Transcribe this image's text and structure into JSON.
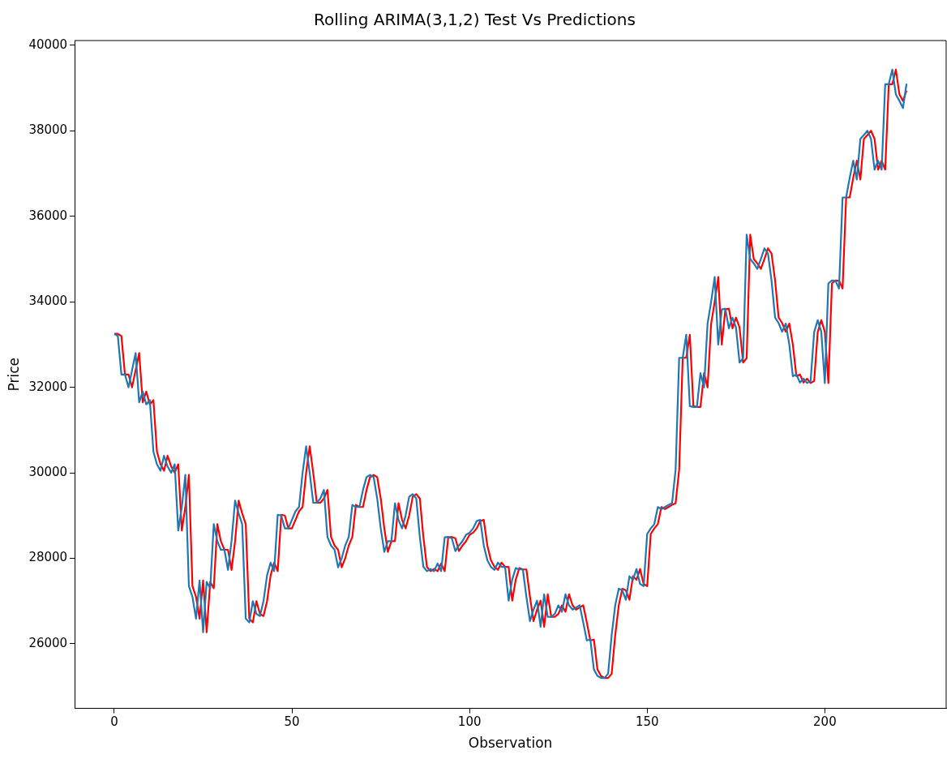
{
  "chart_data": {
    "type": "line",
    "title": "Rolling ARIMA(3,1,2) Test Vs Predictions",
    "xlabel": "Observation",
    "ylabel": "Price",
    "x": [
      0,
      1,
      2,
      3,
      4,
      5,
      6,
      7,
      8,
      9,
      10,
      11,
      12,
      13,
      14,
      15,
      16,
      17,
      18,
      19,
      20,
      21,
      22,
      23,
      24,
      25,
      26,
      27,
      28,
      29,
      30,
      31,
      32,
      33,
      34,
      35,
      36,
      37,
      38,
      39,
      40,
      41,
      42,
      43,
      44,
      45,
      46,
      47,
      48,
      49,
      50,
      51,
      52,
      53,
      54,
      55,
      56,
      57,
      58,
      59,
      60,
      61,
      62,
      63,
      64,
      65,
      66,
      67,
      68,
      69,
      70,
      71,
      72,
      73,
      74,
      75,
      76,
      77,
      78,
      79,
      80,
      81,
      82,
      83,
      84,
      85,
      86,
      87,
      88,
      89,
      90,
      91,
      92,
      93,
      94,
      95,
      96,
      97,
      98,
      99,
      100,
      101,
      102,
      103,
      104,
      105,
      106,
      107,
      108,
      109,
      110,
      111,
      112,
      113,
      114,
      115,
      116,
      117,
      118,
      119,
      120,
      121,
      122,
      123,
      124,
      125,
      126,
      127,
      128,
      129,
      130,
      131,
      132,
      133,
      134,
      135,
      136,
      137,
      138,
      139,
      140,
      141,
      142,
      143,
      144,
      145,
      146,
      147,
      148,
      149,
      150,
      151,
      152,
      153,
      154,
      155,
      156,
      157,
      158,
      159,
      160,
      161,
      162,
      163,
      164,
      165,
      166,
      167,
      168,
      169,
      170,
      171,
      172,
      173,
      174,
      175,
      176,
      177,
      178,
      179,
      180,
      181,
      182,
      183,
      184,
      185,
      186,
      187,
      188,
      189,
      190,
      191,
      192,
      193,
      194,
      195,
      196,
      197,
      198,
      199,
      200,
      201,
      202,
      203,
      204,
      205,
      206,
      207,
      208,
      209,
      210,
      211,
      212,
      213,
      214,
      215,
      216,
      217,
      218,
      219,
      220,
      221,
      222,
      223
    ],
    "series": [
      {
        "color": "#1f77b4",
        "values": [
          33250,
          33200,
          32300,
          32300,
          32000,
          32400,
          32800,
          31650,
          31900,
          31600,
          31700,
          30500,
          30200,
          30050,
          30400,
          30150,
          30000,
          30200,
          28650,
          29200,
          29950,
          27350,
          27100,
          26590,
          27480,
          26270,
          27450,
          27300,
          28800,
          28400,
          28200,
          28200,
          27730,
          28400,
          29350,
          29050,
          28800,
          26590,
          26500,
          27000,
          26700,
          26650,
          27000,
          27600,
          27900,
          27700,
          29020,
          29000,
          28700,
          28700,
          28900,
          29100,
          29200,
          30000,
          30620,
          30000,
          29300,
          29300,
          29400,
          29600,
          28500,
          28300,
          28200,
          27790,
          28000,
          28300,
          28500,
          29250,
          29200,
          29200,
          29600,
          29900,
          29950,
          29900,
          29400,
          28700,
          28150,
          28400,
          28400,
          29290,
          28900,
          28700,
          29000,
          29440,
          29500,
          29400,
          28500,
          27800,
          27700,
          27750,
          27700,
          27880,
          27700,
          28490,
          28500,
          28470,
          28170,
          28300,
          28400,
          28550,
          28600,
          28700,
          28870,
          28900,
          28300,
          27960,
          27800,
          27730,
          27900,
          27800,
          27800,
          27010,
          27500,
          27770,
          27740,
          27740,
          27100,
          26530,
          26800,
          27010,
          26400,
          27160,
          26630,
          26630,
          26700,
          26900,
          26750,
          27160,
          26900,
          26800,
          26850,
          26900,
          26500,
          26080,
          26100,
          25400,
          25250,
          25200,
          25200,
          25300,
          26200,
          26900,
          27290,
          27250,
          27030,
          27580,
          27500,
          27750,
          27400,
          27350,
          28570,
          28700,
          28800,
          29200,
          29150,
          29200,
          29250,
          29290,
          30070,
          32690,
          32690,
          33230,
          31560,
          31540,
          31540,
          32330,
          32000,
          33490,
          34000,
          34580,
          33000,
          33820,
          33840,
          33380,
          33630,
          33400,
          32580,
          32680,
          35570,
          35000,
          34900,
          34770,
          35000,
          35250,
          35130,
          34500,
          33630,
          33500,
          33300,
          33490,
          33000,
          32260,
          32300,
          32110,
          32200,
          32100,
          32150,
          33290,
          33570,
          33300,
          32100,
          34430,
          34500,
          34490,
          34310,
          36440,
          36440,
          36900,
          37300,
          36860,
          37810,
          37900,
          38000,
          37810,
          37090,
          37300,
          37090,
          39090,
          39090,
          39430,
          38850,
          38700,
          38530,
          39100
        ]
      },
      {
        "color": "#ff0000",
        "values": [
          33250,
          33250,
          33200,
          32300,
          32300,
          32000,
          32400,
          32800,
          31650,
          31900,
          31600,
          31700,
          30500,
          30200,
          30050,
          30400,
          30150,
          30000,
          30200,
          28650,
          29200,
          29950,
          27350,
          27100,
          26590,
          27480,
          26270,
          27450,
          27300,
          28800,
          28400,
          28200,
          28200,
          27730,
          28400,
          29350,
          29050,
          28800,
          26590,
          26500,
          27000,
          26700,
          26650,
          27000,
          27600,
          27900,
          27700,
          29020,
          29000,
          28700,
          28700,
          28900,
          29100,
          29200,
          30000,
          30620,
          30000,
          29300,
          29300,
          29400,
          29600,
          28500,
          28300,
          28200,
          27790,
          28000,
          28300,
          28500,
          29250,
          29200,
          29200,
          29600,
          29900,
          29950,
          29900,
          29400,
          28700,
          28150,
          28400,
          28400,
          29290,
          28900,
          28700,
          29000,
          29440,
          29500,
          29400,
          28500,
          27800,
          27700,
          27750,
          27700,
          27880,
          27700,
          28490,
          28500,
          28470,
          28170,
          28300,
          28400,
          28550,
          28600,
          28700,
          28870,
          28900,
          28300,
          27960,
          27800,
          27730,
          27900,
          27800,
          27800,
          27010,
          27500,
          27770,
          27740,
          27740,
          27100,
          26530,
          26800,
          27010,
          26400,
          27160,
          26630,
          26630,
          26700,
          26900,
          26750,
          27160,
          26900,
          26800,
          26850,
          26900,
          26500,
          26080,
          26100,
          25400,
          25250,
          25200,
          25200,
          25300,
          26200,
          26900,
          27290,
          27250,
          27030,
          27580,
          27500,
          27750,
          27400,
          27350,
          28570,
          28700,
          28800,
          29200,
          29150,
          29200,
          29250,
          29290,
          30070,
          32690,
          32690,
          33230,
          31560,
          31540,
          31540,
          32330,
          32000,
          33490,
          34000,
          34580,
          33000,
          33820,
          33840,
          33380,
          33630,
          33400,
          32580,
          32680,
          35570,
          35000,
          34900,
          34770,
          35000,
          35250,
          35130,
          34500,
          33630,
          33500,
          33300,
          33490,
          33000,
          32260,
          32300,
          32110,
          32200,
          32100,
          32150,
          33290,
          33570,
          33300,
          32100,
          34430,
          34500,
          34490,
          34310,
          36440,
          36440,
          36900,
          37300,
          36860,
          37810,
          37900,
          38000,
          37810,
          37090,
          37300,
          37090,
          39090,
          39090,
          39430,
          38850,
          38700,
          38940
        ]
      }
    ],
    "xlim": [
      -11.15,
      234.15
    ],
    "xticks": [
      0,
      50,
      100,
      150,
      200
    ],
    "ylim": [
      24490,
      40110
    ],
    "yticks": [
      26000,
      28000,
      30000,
      32000,
      34000,
      36000,
      38000,
      40000
    ],
    "grid": false,
    "legend": false,
    "marker": "none",
    "line_style": "solid"
  }
}
